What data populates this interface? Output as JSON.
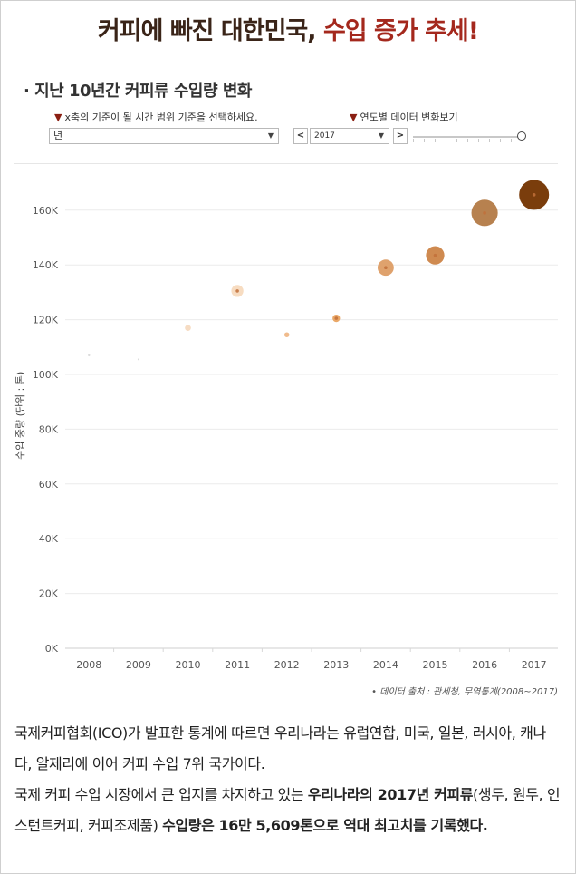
{
  "headline": {
    "part1": "커피에 빠진 대한민국, ",
    "part2": "수입 증가 추세!"
  },
  "section_title": "· 지난 10년간 커피류 수입량 변화",
  "controls": {
    "x_label": "x축의 기준이 될 시간 범위 기준을 선택하세요.",
    "x_value": "년",
    "year_label": "연도별 데이터 변화보기",
    "year_value": "2017",
    "prev_label": "<",
    "next_label": ">",
    "slider_position": 1.0
  },
  "source": "• 데이터 출처 : 관세청, 무역통계(2008~2017)",
  "body": {
    "p1": "국제커피협회(ICO)가 발표한 통계에 따르면 우리나라는 유럽연합, 미국, 일본, 러시아, 캐나다, 알제리에 이어 커피 수입 7위 국가이다.",
    "p2_a": "국제 커피 수입 시장에서 큰 입지를 차지하고 있는 ",
    "p2_b": "우리나라의 2017년 커피류",
    "p2_c": "(생두, 원두, 인스턴트커피, 커피조제품) ",
    "p2_d": "수입량은 16만 5,609톤으로 역대 최고치를 기록했다."
  },
  "colors": {
    "headline_dark": "#3a2418",
    "headline_red": "#a4281d",
    "grid": "#ebebeb"
  },
  "chart_data": {
    "type": "scatter",
    "ylabel": "수입 중량 (단위 : 톤)",
    "xlabel": "",
    "categories": [
      "2008",
      "2009",
      "2010",
      "2011",
      "2012",
      "2013",
      "2014",
      "2015",
      "2016",
      "2017"
    ],
    "y_ticks": [
      "0K",
      "20K",
      "40K",
      "60K",
      "80K",
      "100K",
      "120K",
      "140K",
      "160K"
    ],
    "ylim": [
      0,
      170000
    ],
    "grid": true,
    "points": [
      {
        "x": "2008",
        "y": 107000,
        "color": "#dcdcdc"
      },
      {
        "x": "2009",
        "y": 105500,
        "color": "#dcdcdc"
      },
      {
        "x": "2010",
        "y": 117000,
        "color": "#f6dcc3"
      },
      {
        "x": "2011",
        "y": 130500,
        "color": "#f7dcc1"
      },
      {
        "x": "2012",
        "y": 114500,
        "color": "#f0bb8c"
      },
      {
        "x": "2013",
        "y": 120500,
        "color": "#eaa868"
      },
      {
        "x": "2014",
        "y": 139000,
        "color": "#dfa26d"
      },
      {
        "x": "2015",
        "y": 143500,
        "color": "#cf8a50"
      },
      {
        "x": "2016",
        "y": 159000,
        "color": "#b7814f"
      },
      {
        "x": "2017",
        "y": 165609,
        "color": "#7a3d0c"
      }
    ]
  }
}
